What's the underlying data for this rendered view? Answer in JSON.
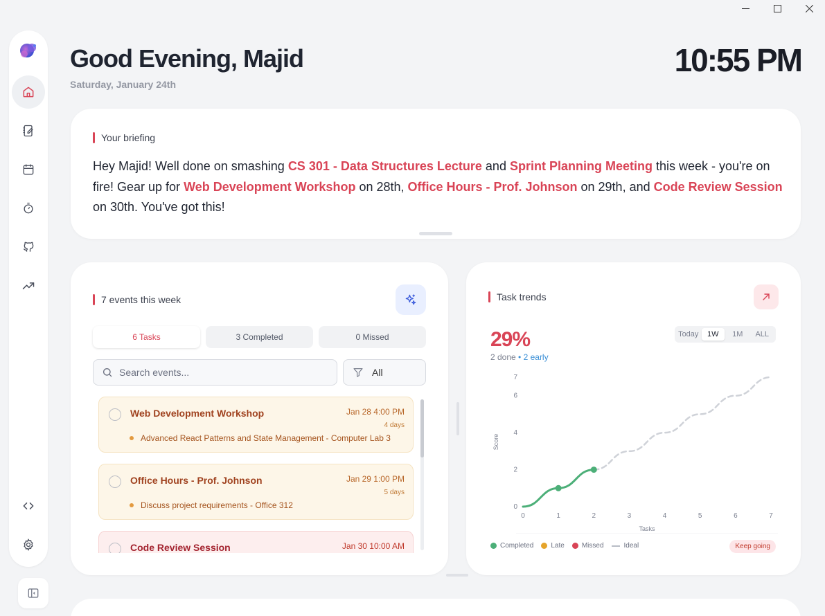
{
  "header": {
    "greeting": "Good Evening, Majid",
    "date": "Saturday, January 24th",
    "time": "10:55 PM"
  },
  "sidebar": {
    "items": [
      {
        "name": "home-icon",
        "active": true
      },
      {
        "name": "notebook-icon",
        "active": false
      },
      {
        "name": "calendar-icon",
        "active": false
      },
      {
        "name": "timer-icon",
        "active": false
      },
      {
        "name": "github-icon",
        "active": false
      },
      {
        "name": "trending-up-icon",
        "active": false
      }
    ]
  },
  "briefing": {
    "title": "Your briefing",
    "parts": [
      {
        "text": "Hey Majid! Well done on smashing ",
        "hl": false
      },
      {
        "text": "CS 301 - Data Structures Lecture",
        "hl": true
      },
      {
        "text": " and ",
        "hl": false
      },
      {
        "text": "Sprint Planning Meeting",
        "hl": true
      },
      {
        "text": " this week - you're on fire! Gear up for ",
        "hl": false
      },
      {
        "text": "Web Development Workshop",
        "hl": true
      },
      {
        "text": " on 28th, ",
        "hl": false
      },
      {
        "text": "Office Hours - Prof. Johnson",
        "hl": true
      },
      {
        "text": " on 29th, and ",
        "hl": false
      },
      {
        "text": "Code Review Session",
        "hl": true
      },
      {
        "text": " on 30th. You've got this!",
        "hl": false
      }
    ]
  },
  "events": {
    "title": "7 events this week",
    "tabs": [
      "6 Tasks",
      "3 Completed",
      "0 Missed"
    ],
    "search_placeholder": "Search events...",
    "filter_label": "All",
    "items": [
      {
        "title": "Web Development Workshop",
        "date": "Jan 28 4:00 PM",
        "relative": "4 days",
        "desc": "Advanced React Patterns and State Management - Computer Lab 3",
        "tone": "amber"
      },
      {
        "title": "Office Hours - Prof. Johnson",
        "date": "Jan 29 1:00 PM",
        "relative": "5 days",
        "desc": "Discuss project requirements - Office 312",
        "tone": "amber"
      },
      {
        "title": "Code Review Session",
        "date": "Jan 30 10:00 AM",
        "relative": "",
        "desc": "",
        "tone": "red"
      }
    ]
  },
  "trends": {
    "title": "Task trends",
    "percent": "29%",
    "done": "2 done",
    "early": "• 2 early",
    "ranges": [
      "Today",
      "1W",
      "1M",
      "ALL"
    ],
    "active_range": "1W",
    "legend": [
      "Completed",
      "Late",
      "Missed",
      "Ideal"
    ],
    "badge": "Keep going"
  },
  "chart_data": {
    "type": "line",
    "xlabel": "Tasks",
    "ylabel": "Score",
    "x_ticks": [
      0,
      1,
      2,
      3,
      4,
      5,
      6,
      7
    ],
    "y_ticks": [
      0,
      2,
      4,
      6,
      7
    ],
    "xlim": [
      0,
      7
    ],
    "ylim": [
      0,
      7
    ],
    "series": [
      {
        "name": "Completed",
        "color": "#4caf78",
        "points": [
          [
            0,
            0
          ],
          [
            1,
            1
          ],
          [
            2,
            2
          ]
        ]
      },
      {
        "name": "Ideal",
        "color": "#cfd2d8",
        "dashed": true,
        "points": [
          [
            2,
            2
          ],
          [
            3,
            3
          ],
          [
            4,
            4
          ],
          [
            5,
            5
          ],
          [
            6,
            6
          ],
          [
            7,
            7
          ]
        ]
      }
    ],
    "legend_colors": {
      "Completed": "#4caf78",
      "Late": "#e5a42b",
      "Missed": "#d94456",
      "Ideal": "#b8bcc5"
    }
  }
}
